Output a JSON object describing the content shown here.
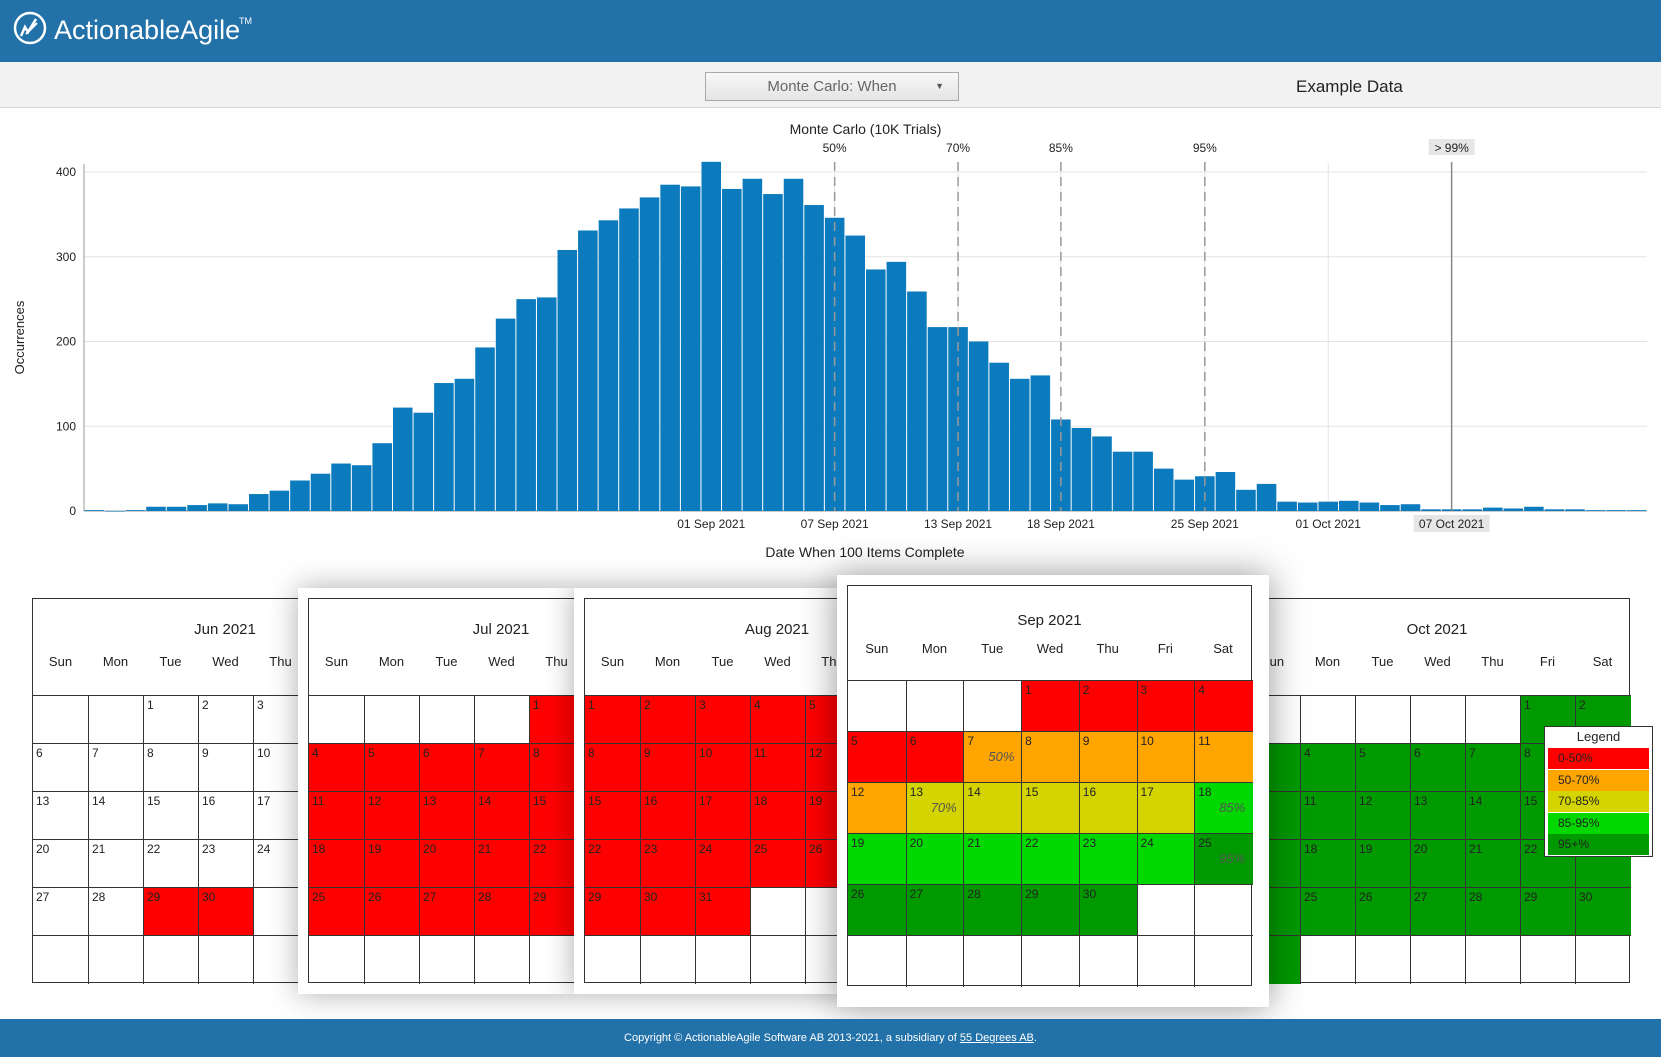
{
  "app": {
    "brand": "ActionableAgile",
    "trademark": "TM"
  },
  "toolbar": {
    "chart_select_value": "Monte Carlo: When",
    "dataset_label": "Example Data"
  },
  "chart_data": {
    "type": "bar",
    "title": "Monte Carlo (10K Trials)",
    "xlabel": "Date When 100 Items Complete",
    "ylabel": "Occurrences",
    "ylim": [
      0,
      400
    ],
    "yticks": [
      0,
      100,
      200,
      300,
      400
    ],
    "x_start": "2021-08-02",
    "x_step_days": 1,
    "xtick_labels": [
      {
        "label": "01 Sep 2021",
        "day_index": 30
      },
      {
        "label": "07 Sep 2021",
        "day_index": 36
      },
      {
        "label": "13 Sep 2021",
        "day_index": 42
      },
      {
        "label": "18 Sep 2021",
        "day_index": 47
      },
      {
        "label": "25 Sep 2021",
        "day_index": 54
      },
      {
        "label": "01 Oct 2021",
        "day_index": 60
      },
      {
        "label": "07 Oct 2021",
        "day_index": 66
      }
    ],
    "values": [
      1,
      0,
      1,
      5,
      5,
      7,
      9,
      8,
      20,
      24,
      36,
      44,
      56,
      54,
      80,
      122,
      116,
      151,
      156,
      193,
      227,
      250,
      252,
      308,
      331,
      343,
      357,
      370,
      385,
      383,
      412,
      380,
      392,
      374,
      392,
      361,
      346,
      325,
      285,
      294,
      259,
      217,
      217,
      200,
      175,
      156,
      160,
      108,
      98,
      88,
      70,
      70,
      50,
      37,
      41,
      46,
      25,
      32,
      11,
      10,
      11,
      12,
      10,
      7,
      8,
      2,
      2,
      2,
      4,
      3,
      5,
      2,
      2,
      1,
      1,
      1
    ],
    "percentile_lines": [
      {
        "label": "50%",
        "day_index": 36
      },
      {
        "label": "70%",
        "day_index": 42
      },
      {
        "label": "85%",
        "day_index": 47
      },
      {
        "label": "95%",
        "day_index": 54
      },
      {
        "label": "> 99%",
        "day_index": 66
      }
    ],
    "grid": true
  },
  "calendar": {
    "day_headers": [
      "Sun",
      "Mon",
      "Tue",
      "Wed",
      "Thu",
      "Fri",
      "Sat"
    ],
    "months": [
      {
        "title": "Jun 2021",
        "first_weekday": 2,
        "days": 30
      },
      {
        "title": "Jul 2021",
        "first_weekday": 4,
        "days": 31
      },
      {
        "title": "Aug 2021",
        "first_weekday": 0,
        "days": 31
      },
      {
        "title": "Sep 2021",
        "first_weekday": 3,
        "days": 30
      },
      {
        "title": "Oct 2021",
        "first_weekday": 5,
        "days": 31
      }
    ],
    "percentile_markers": [
      {
        "date": "Sep 7",
        "label": "50%"
      },
      {
        "date": "Sep 13",
        "label": "70%"
      },
      {
        "date": "Sep 18",
        "label": "85%"
      },
      {
        "date": "Sep 25",
        "label": "95%"
      }
    ]
  },
  "legend": {
    "title": "Legend",
    "items": [
      {
        "label": "0-50%",
        "color": "#ff0000"
      },
      {
        "label": "50-70%",
        "color": "#ffa500"
      },
      {
        "label": "70-85%",
        "color": "#d4d400"
      },
      {
        "label": "85-95%",
        "color": "#00d800"
      },
      {
        "label": "95+%",
        "color": "#009a00"
      }
    ]
  },
  "footer": {
    "text_prefix": "Copyright © ActionableAgile Software AB 2013-2021, a subsidiary of ",
    "link_text": "55 Degrees AB",
    "text_suffix": "."
  }
}
